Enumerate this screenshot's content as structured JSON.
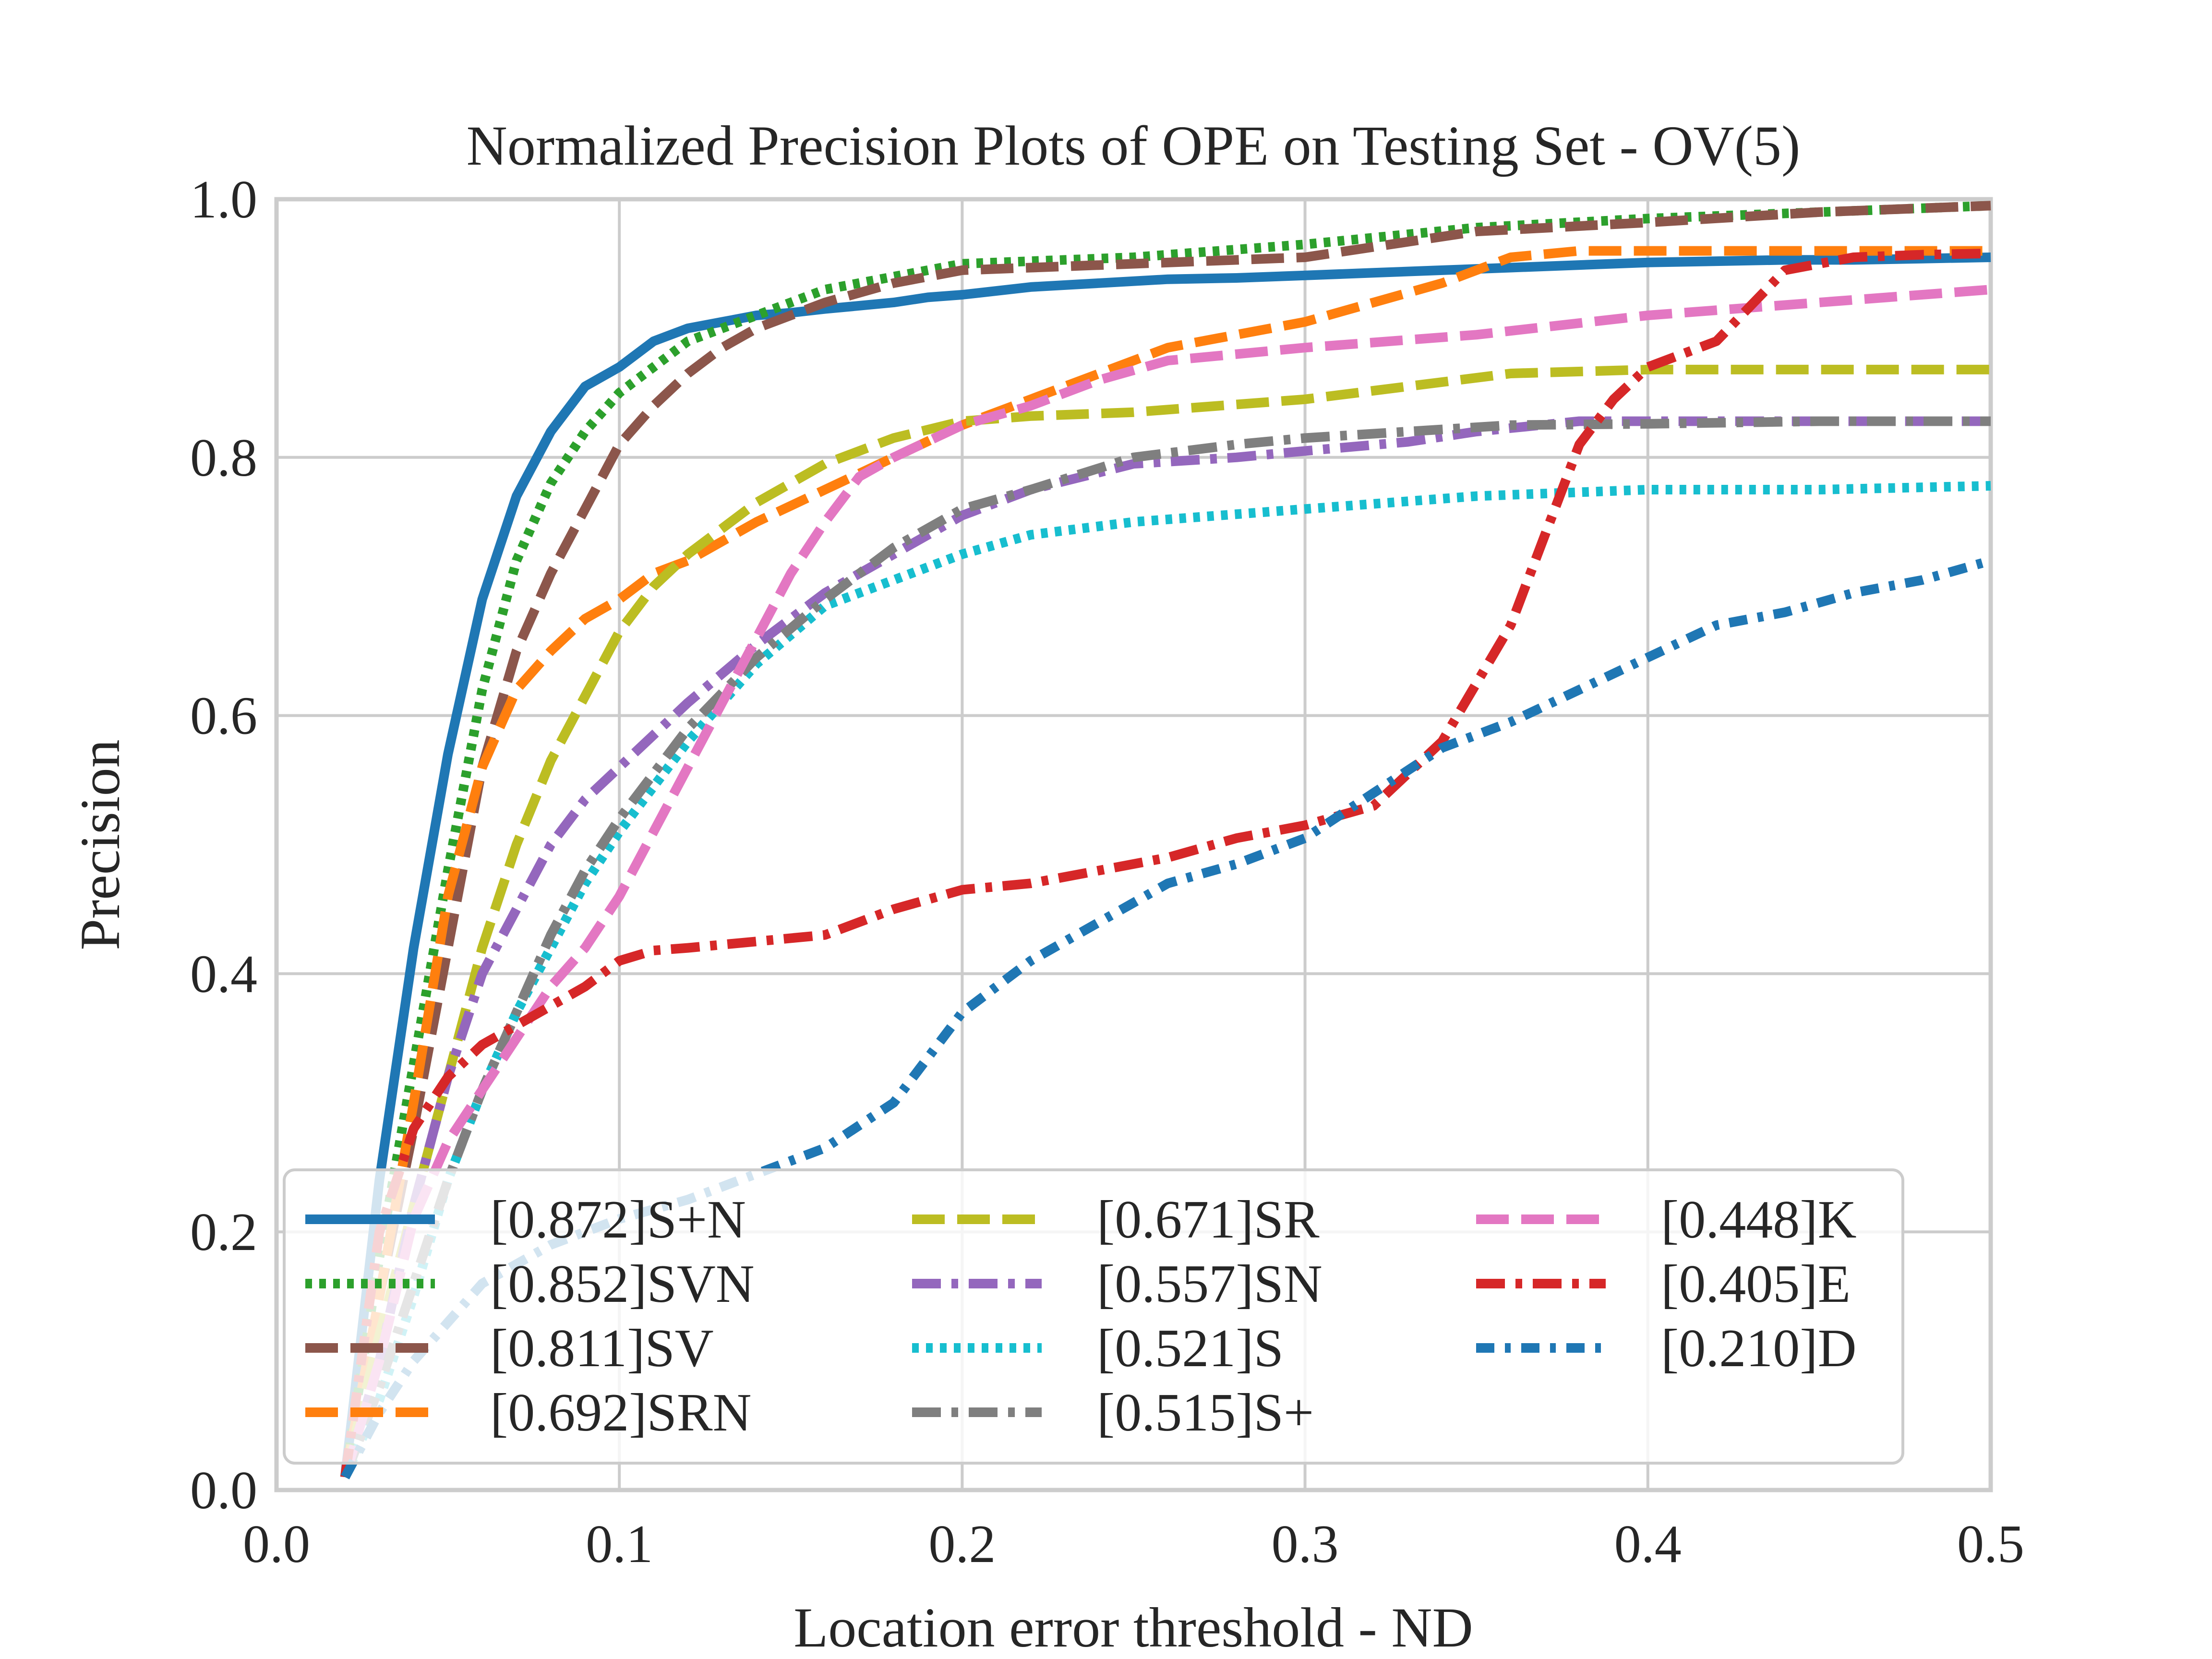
{
  "chart_data": {
    "type": "line",
    "title": "Normalized Precision Plots of OPE on Testing Set - OV(5)",
    "xlabel": "Location error threshold - ND",
    "ylabel": "Precision",
    "xlim": [
      0,
      0.5
    ],
    "ylim": [
      0,
      1
    ],
    "xticks": [
      "0.0",
      "0.1",
      "0.2",
      "0.3",
      "0.4",
      "0.5"
    ],
    "yticks": [
      "0.0",
      "0.2",
      "0.4",
      "0.6",
      "0.8",
      "1.0"
    ],
    "grid": true,
    "legend": {
      "placement": "lower-left",
      "columns": 3
    },
    "series": [
      {
        "name": "[0.872]S+N",
        "color": "#1f77b4",
        "dash": "solid",
        "x": [
          0.02,
          0.03,
          0.04,
          0.05,
          0.06,
          0.07,
          0.08,
          0.09,
          0.1,
          0.11,
          0.12,
          0.13,
          0.14,
          0.15,
          0.16,
          0.18,
          0.19,
          0.2,
          0.22,
          0.24,
          0.26,
          0.28,
          0.3,
          0.32,
          0.34,
          0.36,
          0.38,
          0.4,
          0.42,
          0.44,
          0.46,
          0.48,
          0.5
        ],
        "y": [
          0.01,
          0.24,
          0.42,
          0.57,
          0.69,
          0.77,
          0.82,
          0.855,
          0.87,
          0.89,
          0.9,
          0.905,
          0.91,
          0.912,
          0.915,
          0.92,
          0.924,
          0.926,
          0.932,
          0.935,
          0.938,
          0.939,
          0.941,
          0.943,
          0.945,
          0.947,
          0.949,
          0.951,
          0.952,
          0.953,
          0.953,
          0.954,
          0.955
        ]
      },
      {
        "name": "[0.852]SVN",
        "color": "#2ca02c",
        "dash": "dotted",
        "x": [
          0.02,
          0.03,
          0.04,
          0.05,
          0.06,
          0.07,
          0.08,
          0.09,
          0.1,
          0.11,
          0.12,
          0.14,
          0.16,
          0.18,
          0.2,
          0.25,
          0.3,
          0.35,
          0.4,
          0.45,
          0.5
        ],
        "y": [
          0.01,
          0.18,
          0.33,
          0.48,
          0.62,
          0.72,
          0.78,
          0.82,
          0.85,
          0.87,
          0.89,
          0.91,
          0.93,
          0.94,
          0.95,
          0.955,
          0.965,
          0.978,
          0.985,
          0.99,
          0.995
        ]
      },
      {
        "name": "[0.811]SV",
        "color": "#8c564b",
        "dash": "dashed",
        "x": [
          0.02,
          0.03,
          0.04,
          0.05,
          0.06,
          0.07,
          0.08,
          0.09,
          0.1,
          0.11,
          0.12,
          0.13,
          0.14,
          0.16,
          0.18,
          0.2,
          0.25,
          0.3,
          0.35,
          0.4,
          0.45,
          0.5
        ],
        "y": [
          0.01,
          0.15,
          0.28,
          0.42,
          0.56,
          0.65,
          0.71,
          0.76,
          0.81,
          0.84,
          0.865,
          0.885,
          0.9,
          0.92,
          0.935,
          0.945,
          0.95,
          0.955,
          0.975,
          0.982,
          0.99,
          0.995
        ]
      },
      {
        "name": "[0.692]SRN",
        "color": "#ff7f0e",
        "dash": "dashed",
        "x": [
          0.02,
          0.03,
          0.04,
          0.05,
          0.06,
          0.07,
          0.08,
          0.09,
          0.1,
          0.11,
          0.12,
          0.14,
          0.16,
          0.18,
          0.2,
          0.22,
          0.24,
          0.26,
          0.28,
          0.3,
          0.32,
          0.34,
          0.36,
          0.38,
          0.4,
          0.45,
          0.5
        ],
        "y": [
          0.01,
          0.15,
          0.3,
          0.46,
          0.56,
          0.62,
          0.65,
          0.675,
          0.69,
          0.71,
          0.72,
          0.75,
          0.775,
          0.8,
          0.825,
          0.845,
          0.865,
          0.885,
          0.895,
          0.905,
          0.92,
          0.935,
          0.955,
          0.96,
          0.96,
          0.96,
          0.96
        ]
      },
      {
        "name": "[0.671]SR",
        "color": "#bcbd22",
        "dash": "dashed",
        "x": [
          0.02,
          0.03,
          0.04,
          0.05,
          0.06,
          0.07,
          0.08,
          0.09,
          0.1,
          0.11,
          0.12,
          0.14,
          0.16,
          0.18,
          0.2,
          0.22,
          0.25,
          0.3,
          0.33,
          0.36,
          0.4,
          0.45,
          0.5
        ],
        "y": [
          0.01,
          0.12,
          0.22,
          0.32,
          0.42,
          0.5,
          0.565,
          0.615,
          0.665,
          0.7,
          0.725,
          0.765,
          0.795,
          0.815,
          0.828,
          0.832,
          0.835,
          0.845,
          0.855,
          0.865,
          0.868,
          0.868,
          0.868
        ]
      },
      {
        "name": "[0.557]SN",
        "color": "#9467bd",
        "dash": "dashdot",
        "x": [
          0.02,
          0.03,
          0.04,
          0.05,
          0.06,
          0.07,
          0.08,
          0.09,
          0.1,
          0.12,
          0.14,
          0.16,
          0.18,
          0.2,
          0.22,
          0.25,
          0.28,
          0.3,
          0.33,
          0.35,
          0.38,
          0.4,
          0.45,
          0.5
        ],
        "y": [
          0.01,
          0.1,
          0.22,
          0.32,
          0.4,
          0.45,
          0.5,
          0.535,
          0.56,
          0.61,
          0.655,
          0.695,
          0.725,
          0.755,
          0.775,
          0.795,
          0.8,
          0.805,
          0.812,
          0.82,
          0.828,
          0.828,
          0.828,
          0.828
        ]
      },
      {
        "name": "[0.521]S",
        "color": "#17becf",
        "dash": "dotted",
        "x": [
          0.02,
          0.03,
          0.04,
          0.05,
          0.06,
          0.07,
          0.08,
          0.09,
          0.1,
          0.12,
          0.14,
          0.16,
          0.18,
          0.2,
          0.22,
          0.25,
          0.3,
          0.35,
          0.4,
          0.45,
          0.5
        ],
        "y": [
          0.01,
          0.07,
          0.15,
          0.24,
          0.31,
          0.37,
          0.42,
          0.47,
          0.51,
          0.58,
          0.64,
          0.685,
          0.705,
          0.725,
          0.74,
          0.75,
          0.76,
          0.77,
          0.775,
          0.775,
          0.778
        ]
      },
      {
        "name": "[0.515]S+",
        "color": "#7f7f7f",
        "dash": "dashdot",
        "x": [
          0.02,
          0.03,
          0.04,
          0.05,
          0.06,
          0.07,
          0.08,
          0.09,
          0.1,
          0.12,
          0.14,
          0.16,
          0.18,
          0.2,
          0.22,
          0.25,
          0.28,
          0.3,
          0.33,
          0.36,
          0.4,
          0.45,
          0.5
        ],
        "y": [
          0.01,
          0.08,
          0.16,
          0.24,
          0.31,
          0.37,
          0.43,
          0.48,
          0.52,
          0.59,
          0.645,
          0.69,
          0.73,
          0.76,
          0.775,
          0.8,
          0.81,
          0.815,
          0.82,
          0.825,
          0.826,
          0.828,
          0.828
        ]
      },
      {
        "name": "[0.448]K",
        "color": "#e377c2",
        "dash": "dashed",
        "x": [
          0.02,
          0.03,
          0.04,
          0.05,
          0.06,
          0.07,
          0.08,
          0.09,
          0.1,
          0.11,
          0.12,
          0.13,
          0.14,
          0.15,
          0.16,
          0.17,
          0.18,
          0.2,
          0.22,
          0.24,
          0.26,
          0.28,
          0.3,
          0.35,
          0.4,
          0.45,
          0.5
        ],
        "y": [
          0.01,
          0.1,
          0.21,
          0.27,
          0.31,
          0.35,
          0.39,
          0.42,
          0.46,
          0.51,
          0.56,
          0.61,
          0.66,
          0.71,
          0.75,
          0.785,
          0.8,
          0.825,
          0.84,
          0.86,
          0.875,
          0.88,
          0.885,
          0.895,
          0.91,
          0.92,
          0.93
        ]
      },
      {
        "name": "[0.405]E",
        "color": "#d62728",
        "dash": "dashdot",
        "x": [
          0.02,
          0.03,
          0.04,
          0.05,
          0.06,
          0.07,
          0.08,
          0.09,
          0.1,
          0.11,
          0.12,
          0.14,
          0.16,
          0.18,
          0.2,
          0.22,
          0.24,
          0.26,
          0.28,
          0.3,
          0.32,
          0.34,
          0.36,
          0.37,
          0.38,
          0.39,
          0.4,
          0.42,
          0.44,
          0.46,
          0.48,
          0.5
        ],
        "y": [
          0.01,
          0.2,
          0.28,
          0.32,
          0.345,
          0.36,
          0.375,
          0.39,
          0.41,
          0.418,
          0.42,
          0.425,
          0.43,
          0.45,
          0.465,
          0.47,
          0.48,
          0.49,
          0.505,
          0.515,
          0.53,
          0.58,
          0.67,
          0.74,
          0.81,
          0.845,
          0.87,
          0.89,
          0.945,
          0.955,
          0.957,
          0.958
        ]
      },
      {
        "name": "[0.210]D",
        "color": "#1f77b4",
        "dash": "densedashdot",
        "x": [
          0.02,
          0.03,
          0.04,
          0.05,
          0.06,
          0.08,
          0.1,
          0.12,
          0.14,
          0.16,
          0.18,
          0.2,
          0.22,
          0.24,
          0.26,
          0.28,
          0.3,
          0.32,
          0.34,
          0.36,
          0.38,
          0.4,
          0.42,
          0.44,
          0.46,
          0.48,
          0.5
        ],
        "y": [
          0.01,
          0.06,
          0.1,
          0.13,
          0.16,
          0.19,
          0.21,
          0.225,
          0.245,
          0.265,
          0.3,
          0.37,
          0.41,
          0.44,
          0.47,
          0.485,
          0.505,
          0.54,
          0.575,
          0.595,
          0.62,
          0.645,
          0.67,
          0.68,
          0.695,
          0.705,
          0.72
        ]
      }
    ]
  }
}
